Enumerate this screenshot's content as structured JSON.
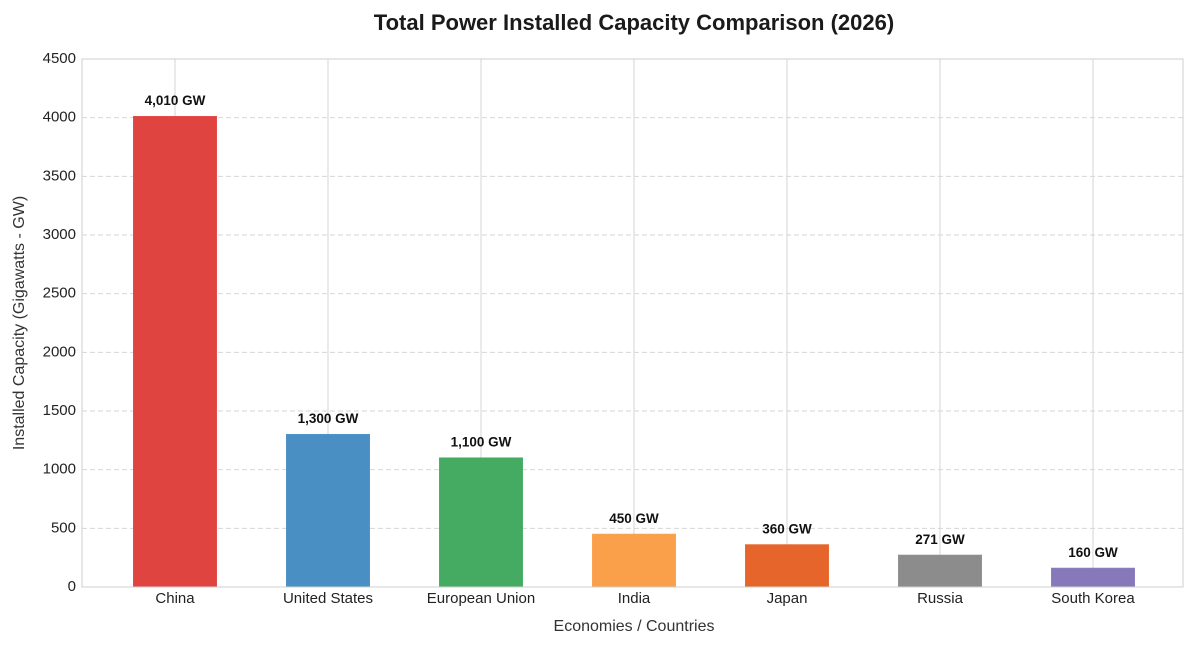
{
  "chart_data": {
    "type": "bar",
    "title": "Total Power Installed Capacity Comparison (2026)",
    "x_label": "Economies / Countries",
    "y_label": "Installed Capacity (Gigawatts - GW)",
    "categories": [
      "China",
      "United States",
      "European Union",
      "India",
      "Japan",
      "Russia",
      "South Korea"
    ],
    "values": [
      4010,
      1300,
      1100,
      450,
      360,
      271,
      160
    ],
    "value_labels": [
      "4,010 GW",
      "1,300 GW",
      "1,100 GW",
      "450 GW",
      "360 GW",
      "271 GW",
      "160 GW"
    ],
    "colors": [
      "#e04441",
      "#4a8fc4",
      "#45ab62",
      "#fba04a",
      "#e6652a",
      "#8c8c8c",
      "#8779b9"
    ],
    "ylim": [
      0,
      4500
    ],
    "yticks": [
      0,
      500,
      1000,
      1500,
      2000,
      2500,
      3000,
      3500,
      4000,
      4500
    ],
    "grid": true
  }
}
